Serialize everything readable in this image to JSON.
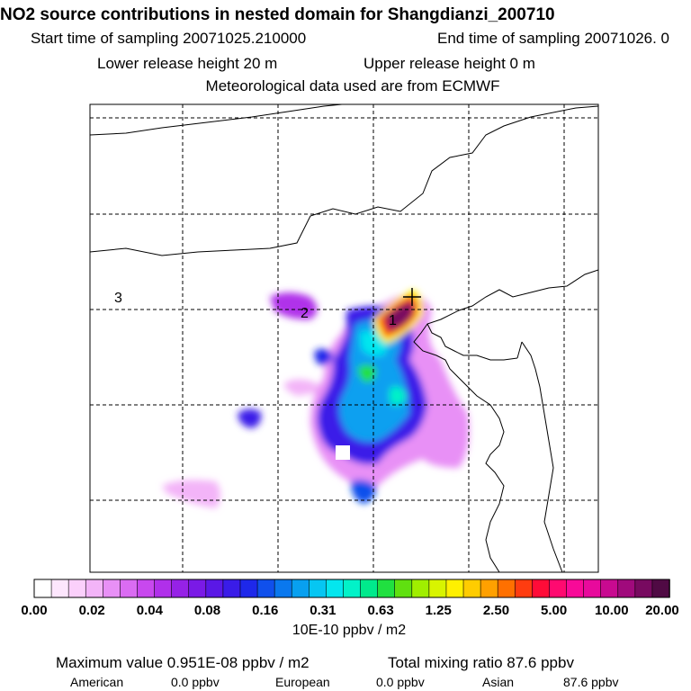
{
  "header": {
    "title": "NO2 source contributions in nested domain for Shangdianzi_200710",
    "start": "Start time of sampling 20071025.210000",
    "end": "End time of sampling 20071026.     0",
    "lower": "Lower release height   20 m",
    "upper": "Upper release height    0 m",
    "met": "Meteorological data used are from ECMWF"
  },
  "map": {
    "labels": [
      "1",
      "2",
      "3"
    ],
    "station_marker": "plus-icon"
  },
  "colorbar": {
    "ticks": [
      "0.00",
      "0.02",
      "0.04",
      "0.08",
      "0.16",
      "0.31",
      "0.63",
      "1.25",
      "2.50",
      "5.00",
      "10.00",
      "20.00"
    ],
    "colors": [
      "#ffffff",
      "#fde6fd",
      "#fbd0fb",
      "#f3b4f8",
      "#e890f6",
      "#da6cf2",
      "#c848ee",
      "#b030ea",
      "#9622e6",
      "#7a1ae6",
      "#5a18e6",
      "#3a1ce8",
      "#1e28ea",
      "#1050ec",
      "#0a78ee",
      "#08a0f0",
      "#06c6f2",
      "#04e6ee",
      "#02f2c8",
      "#00ea8c",
      "#20e040",
      "#60e010",
      "#a0ee00",
      "#d8f400",
      "#fff000",
      "#ffcc00",
      "#ffa000",
      "#ff7000",
      "#ff3c10",
      "#ff0c38",
      "#ff0a70",
      "#f80a98",
      "#e80a9c",
      "#c80a90",
      "#a00a7c",
      "#780a60",
      "#500a44"
    ],
    "units": "10E-10 ppbv / m2"
  },
  "footer": {
    "max": "Maximum value  0.951E-08 ppbv / m2",
    "total": "Total mixing ratio      87.6 ppbv",
    "american_label": "American",
    "american_val": "0.0 ppbv",
    "european_label": "European",
    "european_val": "0.0 ppbv",
    "asian_label": "Asian",
    "asian_val": "87.6 ppbv"
  }
}
